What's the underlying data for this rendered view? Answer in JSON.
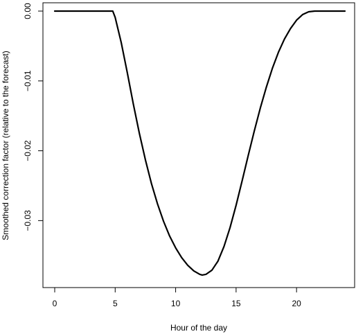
{
  "chart_data": {
    "type": "line",
    "title": "",
    "xlabel": "Hour of the day",
    "ylabel": "Smoothed correction factor (relative to the forecast)",
    "xlim": [
      0,
      24
    ],
    "ylim": [
      -0.038,
      0.0
    ],
    "xticks": [
      0,
      5,
      10,
      15,
      20
    ],
    "xtick_labels": [
      "0",
      "5",
      "10",
      "15",
      "20"
    ],
    "yticks": [
      0.0,
      -0.01,
      -0.02,
      -0.03
    ],
    "ytick_labels": [
      "0.00",
      "−0.01",
      "−0.02",
      "−0.03"
    ],
    "grid": false,
    "legend": "none",
    "series": [
      {
        "color": "#000000",
        "x": [
          0,
          1,
          2,
          3,
          4,
          4.8,
          5,
          5.5,
          6,
          6.5,
          7,
          7.5,
          8,
          8.5,
          9,
          9.5,
          10,
          10.5,
          11,
          11.5,
          12,
          12.2,
          12.5,
          13,
          13.5,
          14,
          14.5,
          15,
          15.5,
          16,
          16.5,
          17,
          17.5,
          18,
          18.5,
          19,
          19.5,
          20,
          20.5,
          21,
          21.5,
          21.8,
          22,
          23,
          24
        ],
        "y": [
          0,
          0,
          0,
          0,
          0,
          0,
          -0.0009,
          -0.0045,
          -0.0088,
          -0.0133,
          -0.0175,
          -0.0213,
          -0.0247,
          -0.0276,
          -0.0301,
          -0.0322,
          -0.0339,
          -0.0353,
          -0.0364,
          -0.0372,
          -0.0377,
          -0.0378,
          -0.0377,
          -0.0371,
          -0.0358,
          -0.0337,
          -0.031,
          -0.0278,
          -0.0243,
          -0.0207,
          -0.0172,
          -0.0139,
          -0.0109,
          -0.0082,
          -0.0059,
          -0.004,
          -0.0025,
          -0.0013,
          -0.0005,
          -0.0001,
          0,
          0,
          0,
          0,
          0
        ]
      }
    ]
  }
}
